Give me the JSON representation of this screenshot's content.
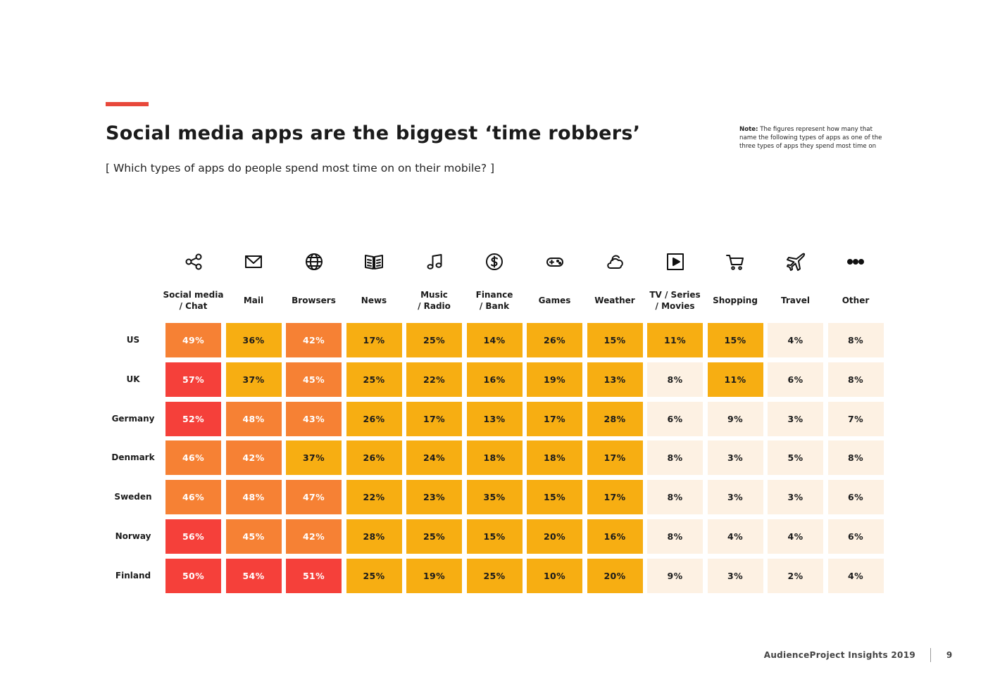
{
  "header": {
    "title": "Social media apps are the biggest ‘time robbers’",
    "subtitle": "[ Which types of apps do people spend most time on on their mobile? ]",
    "note_label": "Note:",
    "note_text": "The figures represent how many that name the following types of apps as one of the three types of apps they spend most time on"
  },
  "colors": {
    "accent": "#e8483b",
    "high": "#f5403a",
    "mid_high": "#f68134",
    "mid": "#f7ae12",
    "low": "#fdf1e3"
  },
  "chart_data": {
    "type": "heatmap",
    "title": "Social media apps are the biggest ‘time robbers’",
    "unit": "%",
    "columns": [
      {
        "label": "Social media\n/ Chat",
        "icon": "share-icon"
      },
      {
        "label": "Mail",
        "icon": "mail-icon"
      },
      {
        "label": "Browsers",
        "icon": "globe-icon"
      },
      {
        "label": "News",
        "icon": "book-icon"
      },
      {
        "label": "Music\n/ Radio",
        "icon": "music-note-icon"
      },
      {
        "label": "Finance\n/ Bank",
        "icon": "dollar-coin-icon"
      },
      {
        "label": "Games",
        "icon": "gamepad-icon"
      },
      {
        "label": "Weather",
        "icon": "cloud-icon"
      },
      {
        "label": "TV / Series\n/ Movies",
        "icon": "play-icon"
      },
      {
        "label": "Shopping",
        "icon": "cart-icon"
      },
      {
        "label": "Travel",
        "icon": "airplane-icon"
      },
      {
        "label": "Other",
        "icon": "more-dots-icon"
      }
    ],
    "rows": [
      {
        "label": "US",
        "values": [
          49,
          36,
          42,
          17,
          25,
          14,
          26,
          15,
          11,
          15,
          4,
          8
        ]
      },
      {
        "label": "UK",
        "values": [
          57,
          37,
          45,
          25,
          22,
          16,
          19,
          13,
          8,
          11,
          6,
          8
        ]
      },
      {
        "label": "Germany",
        "values": [
          52,
          48,
          43,
          26,
          17,
          13,
          17,
          28,
          6,
          9,
          3,
          7
        ]
      },
      {
        "label": "Denmark",
        "values": [
          46,
          42,
          37,
          26,
          24,
          18,
          18,
          17,
          8,
          3,
          5,
          8
        ]
      },
      {
        "label": "Sweden",
        "values": [
          46,
          48,
          47,
          22,
          23,
          35,
          15,
          17,
          8,
          3,
          3,
          6
        ]
      },
      {
        "label": "Norway",
        "values": [
          56,
          45,
          42,
          28,
          25,
          15,
          20,
          16,
          8,
          4,
          4,
          6
        ]
      },
      {
        "label": "Finland",
        "values": [
          50,
          54,
          51,
          25,
          19,
          25,
          10,
          20,
          9,
          3,
          2,
          4
        ]
      }
    ],
    "color_bins": [
      {
        "min": 50,
        "color": "#f5403a",
        "text_color": "#ffffff"
      },
      {
        "min": 40,
        "color": "#f68134",
        "text_color": "#ffffff"
      },
      {
        "min": 10,
        "color": "#f7ae12",
        "text_color": "#1b1b1b"
      },
      {
        "min": 0,
        "color": "#fdf1e3",
        "text_color": "#1b1b1b"
      }
    ]
  },
  "footer": {
    "brand": "AudienceProject Insights 2019",
    "page_number": "9"
  }
}
